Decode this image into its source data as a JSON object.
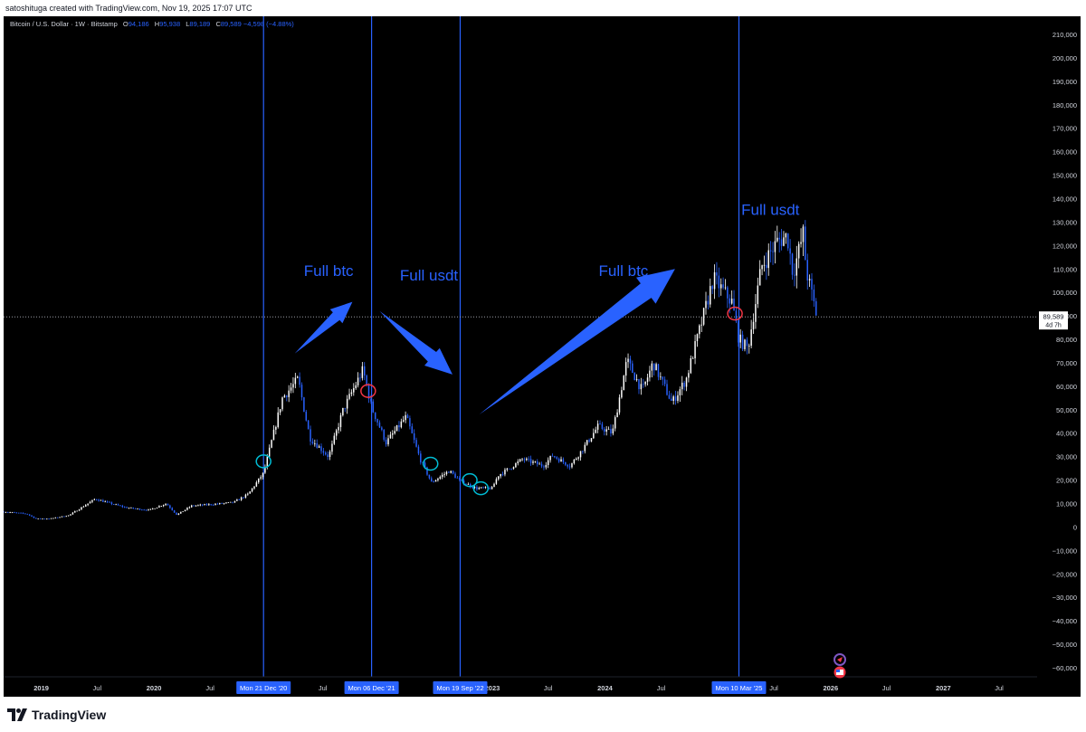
{
  "header": {
    "attribution": "satoshituga created with TradingView.com, Nov 19, 2025 17:07 UTC"
  },
  "legend": {
    "symbol": "Bitcoin / U.S. Dollar · 1W · Bitstamp",
    "open_label": "O",
    "open": "94,186",
    "high_label": "H",
    "high": "95,938",
    "low_label": "L",
    "low": "89,189",
    "close_label": "C",
    "close": "89,589",
    "change": "−4,598 (−4.88%)"
  },
  "colors": {
    "background": "#000000",
    "up_candle": "#ffffff",
    "down_candle": "#2962ff",
    "annotation": "#2962ff",
    "axis_text": "#d1d4dc",
    "circle_cyan": "#00bcd4",
    "circle_red": "#f23645"
  },
  "chart_data": {
    "type": "candlestick",
    "y_axis": {
      "min": -60000,
      "max": 210000,
      "step": 10000,
      "tick_labels": [
        "210,000",
        "200,000",
        "190,000",
        "180,000",
        "170,000",
        "160,000",
        "150,000",
        "140,000",
        "130,000",
        "120,000",
        "110,000",
        "100,000",
        "90,000",
        "80,000",
        "70,000",
        "60,000",
        "50,000",
        "40,000",
        "30,000",
        "20,000",
        "10,000",
        "0",
        "−10,000",
        "−20,000",
        "−30,000",
        "−40,000",
        "−50,000",
        "−60,000"
      ]
    },
    "x_axis": {
      "range": [
        "2018-09-01",
        "2027-11-01"
      ],
      "ticks": [
        {
          "date": "2019-01-01",
          "label": "2019"
        },
        {
          "date": "2019-07-01",
          "label": "Jul"
        },
        {
          "date": "2020-01-01",
          "label": "2020"
        },
        {
          "date": "2020-07-01",
          "label": "Jul"
        },
        {
          "date": "2021-07-01",
          "label": "Jul"
        },
        {
          "date": "2023-01-01",
          "label": "2023"
        },
        {
          "date": "2023-07-01",
          "label": "Jul"
        },
        {
          "date": "2024-01-01",
          "label": "2024"
        },
        {
          "date": "2024-07-01",
          "label": "Jul"
        },
        {
          "date": "2025-07-01",
          "label": "Jul"
        },
        {
          "date": "2026-01-01",
          "label": "2026"
        },
        {
          "date": "2026-07-01",
          "label": "Jul"
        },
        {
          "date": "2027-01-01",
          "label": "2027"
        },
        {
          "date": "2027-07-01",
          "label": "Jul"
        }
      ]
    },
    "last_price": {
      "value": 89589,
      "label": "89,589",
      "countdown": "4d 7h"
    },
    "price_path": [
      [
        "2018-09-01",
        6500
      ],
      [
        "2018-11-15",
        5600
      ],
      [
        "2018-12-15",
        3500
      ],
      [
        "2019-02-01",
        3600
      ],
      [
        "2019-04-01",
        5000
      ],
      [
        "2019-06-25",
        12000
      ],
      [
        "2019-08-01",
        10500
      ],
      [
        "2019-10-01",
        8300
      ],
      [
        "2019-12-15",
        7200
      ],
      [
        "2020-02-10",
        10000
      ],
      [
        "2020-03-15",
        5200
      ],
      [
        "2020-05-01",
        9000
      ],
      [
        "2020-07-20",
        9800
      ],
      [
        "2020-09-15",
        10500
      ],
      [
        "2020-11-01",
        14000
      ],
      [
        "2020-12-21",
        23000
      ],
      [
        "2021-01-15",
        36000
      ],
      [
        "2021-02-20",
        55000
      ],
      [
        "2021-04-12",
        63000
      ],
      [
        "2021-05-20",
        38000
      ],
      [
        "2021-07-20",
        30000
      ],
      [
        "2021-09-05",
        50000
      ],
      [
        "2021-11-08",
        67000
      ],
      [
        "2021-12-06",
        51000
      ],
      [
        "2022-01-22",
        36000
      ],
      [
        "2022-03-28",
        47000
      ],
      [
        "2022-05-12",
        29000
      ],
      [
        "2022-06-18",
        19000
      ],
      [
        "2022-08-15",
        24000
      ],
      [
        "2022-09-19",
        19500
      ],
      [
        "2022-11-10",
        16500
      ],
      [
        "2022-12-31",
        16500
      ],
      [
        "2023-01-20",
        22000
      ],
      [
        "2023-02-20",
        24500
      ],
      [
        "2023-04-10",
        29000
      ],
      [
        "2023-06-15",
        26000
      ],
      [
        "2023-07-15",
        30500
      ],
      [
        "2023-09-10",
        26000
      ],
      [
        "2023-10-25",
        34000
      ],
      [
        "2023-12-10",
        43000
      ],
      [
        "2024-01-25",
        40000
      ],
      [
        "2024-03-12",
        71000
      ],
      [
        "2024-05-01",
        58000
      ],
      [
        "2024-06-05",
        70000
      ],
      [
        "2024-08-05",
        53000
      ],
      [
        "2024-09-20",
        63000
      ],
      [
        "2024-11-15",
        90000
      ],
      [
        "2024-12-17",
        106000
      ],
      [
        "2025-02-15",
        96000
      ],
      [
        "2025-03-10",
        80000
      ],
      [
        "2025-04-08",
        76000
      ],
      [
        "2025-05-22",
        111000
      ],
      [
        "2025-07-14",
        122000
      ],
      [
        "2025-08-14",
        124000
      ],
      [
        "2025-09-01",
        108000
      ],
      [
        "2025-10-06",
        126000
      ],
      [
        "2025-10-13",
        110000
      ],
      [
        "2025-11-17",
        90000
      ]
    ],
    "vertical_markers": [
      {
        "date": "2020-12-21",
        "label": "Mon 21 Dec '20"
      },
      {
        "date": "2021-12-06",
        "label": "Mon 06 Dec '21"
      },
      {
        "date": "2022-09-19",
        "label": "Mon 19 Sep '22"
      },
      {
        "date": "2025-03-10",
        "label": "Mon 10 Mar '25"
      }
    ],
    "annotations": [
      {
        "text": "Full btc",
        "date": "2021-07-20",
        "price": 107000
      },
      {
        "text": "Full usdt",
        "date": "2022-06-10",
        "price": 105000
      },
      {
        "text": "Full btc",
        "date": "2024-03-01",
        "price": 107000
      },
      {
        "text": "Full usdt",
        "date": "2025-06-20",
        "price": 133000
      }
    ],
    "arrows": [
      {
        "from": [
          "2021-04-01",
          74000
        ],
        "to": [
          "2021-10-05",
          96000
        ]
      },
      {
        "from": [
          "2022-01-01",
          92000
        ],
        "to": [
          "2022-08-25",
          65000
        ]
      },
      {
        "from": [
          "2022-11-20",
          48000
        ],
        "to": [
          "2024-08-15",
          110000
        ]
      }
    ],
    "circles": [
      {
        "date": "2020-12-21",
        "price": 28000,
        "color": "cyan"
      },
      {
        "date": "2021-11-25",
        "price": 58000,
        "color": "red"
      },
      {
        "date": "2022-06-15",
        "price": 27000,
        "color": "cyan"
      },
      {
        "date": "2022-10-20",
        "price": 20000,
        "color": "cyan"
      },
      {
        "date": "2022-11-25",
        "price": 16500,
        "color": "cyan"
      },
      {
        "date": "2025-02-25",
        "price": 91000,
        "color": "red"
      }
    ]
  },
  "footer": {
    "brand": "TradingView"
  }
}
